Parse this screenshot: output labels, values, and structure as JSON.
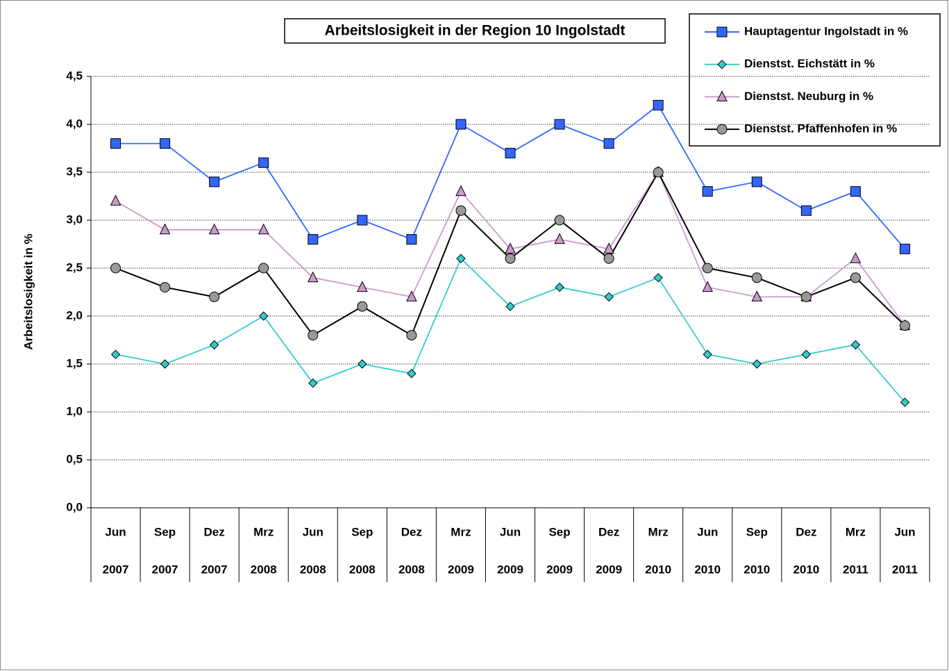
{
  "chart_data": {
    "type": "line",
    "title": "Arbeitslosigkeit in der Region 10 Ingolstadt",
    "y_label": "Arbeitslosigkeit in %",
    "categories": [
      "Jun",
      "Sep",
      "Dez",
      "Mrz",
      "Jun",
      "Sep",
      "Dez",
      "Mrz",
      "Jun",
      "Sep",
      "Dez",
      "Mrz",
      "Jun",
      "Sep",
      "Dez",
      "Mrz",
      "Jun"
    ],
    "years": [
      "2007",
      "2007",
      "2007",
      "2008",
      "2008",
      "2008",
      "2008",
      "2009",
      "2009",
      "2009",
      "2009",
      "2010",
      "2010",
      "2010",
      "2010",
      "2011",
      "2011"
    ],
    "series": [
      {
        "name": "Hauptagentur Ingolstadt in %",
        "color": "#3366ff",
        "marker": "square",
        "marker_color": "#3366ff",
        "values": [
          3.8,
          3.8,
          3.4,
          3.6,
          2.8,
          3.0,
          2.8,
          4.0,
          3.7,
          4.0,
          3.8,
          4.2,
          3.3,
          3.4,
          3.1,
          3.3,
          2.7
        ]
      },
      {
        "name": "Dienstst. Eichstätt in %",
        "color": "#33cccc",
        "marker": "diamond",
        "marker_color": "#33cccc",
        "values": [
          1.6,
          1.5,
          1.7,
          2.0,
          1.3,
          1.5,
          1.4,
          2.6,
          2.1,
          2.3,
          2.2,
          2.4,
          1.6,
          1.5,
          1.6,
          1.7,
          1.1
        ]
      },
      {
        "name": "Dienstst. Neuburg in %",
        "color": "#cc99cc",
        "marker": "triangle",
        "marker_color": "#cc99cc",
        "values": [
          3.2,
          2.9,
          2.9,
          2.9,
          2.4,
          2.3,
          2.2,
          3.3,
          2.7,
          2.8,
          2.7,
          3.5,
          2.3,
          2.2,
          2.2,
          2.6,
          1.9
        ]
      },
      {
        "name": "Dienstst. Pfaffenhofen in %",
        "color": "#000000",
        "marker": "circle",
        "marker_color": "#999999",
        "values": [
          2.5,
          2.3,
          2.2,
          2.5,
          1.8,
          2.1,
          1.8,
          3.1,
          2.6,
          3.0,
          2.6,
          3.5,
          2.5,
          2.4,
          2.2,
          2.4,
          1.9
        ]
      }
    ],
    "ylim": [
      0,
      4.5
    ],
    "yticks": [
      {
        "value": 0,
        "label": "0,0"
      },
      {
        "value": 0.5,
        "label": "0,5"
      },
      {
        "value": 1,
        "label": "1,0"
      },
      {
        "value": 1.5,
        "label": "1,5"
      },
      {
        "value": 2,
        "label": "2,0"
      },
      {
        "value": 2.5,
        "label": "2,5"
      },
      {
        "value": 3,
        "label": "3,0"
      },
      {
        "value": 3.5,
        "label": "3,5"
      },
      {
        "value": 4,
        "label": "4,0"
      },
      {
        "value": 4.5,
        "label": "4,5"
      }
    ],
    "grid": true,
    "legend": "top-right"
  }
}
